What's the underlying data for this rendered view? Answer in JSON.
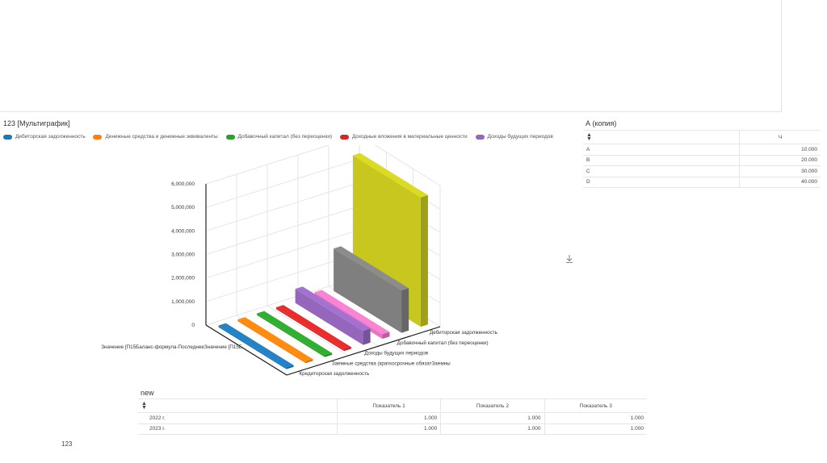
{
  "multichart": {
    "title": "123 [Мультиграфик]",
    "legend": [
      {
        "label": "Дебиторская задолженность",
        "color": "#1f77b4"
      },
      {
        "label": "Денежные средства и денежные эквиваленты",
        "color": "#ff7f0e"
      },
      {
        "label": "Добавочный капитал (без переоценки)",
        "color": "#2ca02c"
      },
      {
        "label": "Доходные вложения в материальные ценности",
        "color": "#d62728"
      },
      {
        "label": "Доходы будущих периодов",
        "color": "#9467bd"
      }
    ],
    "download_icon": "download-icon"
  },
  "chart_data": {
    "type": "bar",
    "title": "",
    "categories": [
      "Дебиторская задолженность",
      "Денежные средства и денежные эквиваленты",
      "Добавочный капитал (без переоценки)",
      "Доходные вложения в материальные ценности",
      "Доходы будущих периодов",
      "Заемные средства (краткосрочные обязательства)",
      "Кредиторская задолженность",
      ""
    ],
    "category_axis_labels": [
      "Дебиторская задолженность",
      "Добавочный капитал (без переоценки)",
      "Доходы будущих периодов",
      "Заемные средства (краткосрочные обязатЗаемны",
      "Кредиторская задолженность"
    ],
    "series_axis_label": "Значение [П15Баланс-формула-ПоследнееЗначение [П15Б",
    "colors": [
      "#1f77b4",
      "#ff7f0e",
      "#2ca02c",
      "#d62728",
      "#9467bd",
      "#e377c2",
      "#7f7f7f",
      "#c7c71f"
    ],
    "values": [
      0,
      0,
      0,
      0,
      600000,
      200000,
      1800000,
      5500000
    ],
    "ylim": [
      0,
      6000000
    ],
    "yticks": [
      "0",
      "1,000,000",
      "2,000,000",
      "3,000,000",
      "4,000,000",
      "5,000,000",
      "6,000,000"
    ],
    "grid": true
  },
  "table_a": {
    "title": "А (копия)",
    "column_header": "Ч",
    "rows": [
      {
        "label": "A",
        "value": "10.000"
      },
      {
        "label": "B",
        "value": "20.000"
      },
      {
        "label": "C",
        "value": "30.000"
      },
      {
        "label": "D",
        "value": "40.000"
      }
    ]
  },
  "table_new": {
    "title": "new",
    "headers": [
      "Показатель 1",
      "Показатель 2",
      "Показатель 3"
    ],
    "rows": [
      {
        "label": "2022 г.",
        "values": [
          "1.000",
          "1.000",
          "1.000"
        ]
      },
      {
        "label": "2023 г.",
        "values": [
          "1.000",
          "1.000",
          "1.000"
        ]
      }
    ]
  },
  "footer": {
    "text": "123"
  }
}
